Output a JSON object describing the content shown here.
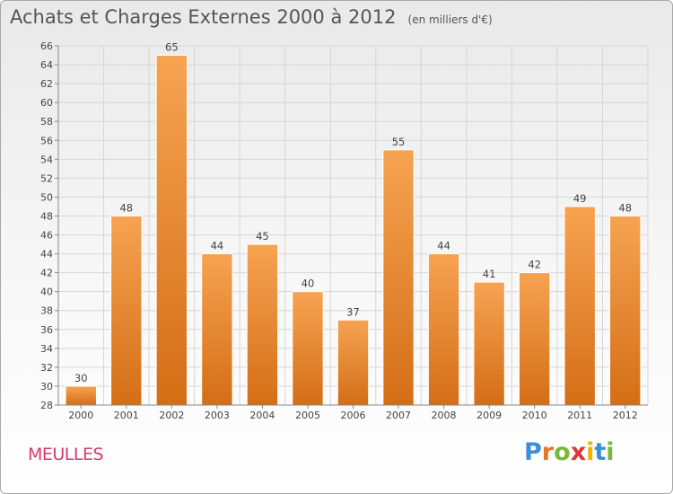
{
  "header": {
    "title": "Achats et Charges Externes 2000 à 2012",
    "unit": "(en milliers d'€)"
  },
  "footer": {
    "commune": "MEULLES",
    "brand_letters": [
      "P",
      "r",
      "o",
      "x",
      "i",
      "t",
      "i"
    ],
    "brand_colors": [
      "#3a8fd8",
      "#e8772a",
      "#7ab83a",
      "#d63a3a",
      "#f0b400",
      "#3a8fd8",
      "#7ab83a"
    ]
  },
  "colors": {
    "bar_light": "#f6a352",
    "bar_dark": "#d46e16",
    "grid": "#d6d6d6",
    "axis": "#888888"
  },
  "chart_data": {
    "type": "bar",
    "title": "Achats et Charges Externes 2000 à 2012",
    "subtitle": "(en milliers d'€)",
    "categories": [
      "2000",
      "2001",
      "2002",
      "2003",
      "2004",
      "2005",
      "2006",
      "2007",
      "2008",
      "2009",
      "2010",
      "2011",
      "2012"
    ],
    "values": [
      30,
      48,
      65,
      44,
      45,
      40,
      37,
      55,
      44,
      41,
      42,
      49,
      48
    ],
    "ylim": [
      28,
      66
    ],
    "ytick_step": 2,
    "grid": true,
    "data_labels": true
  }
}
